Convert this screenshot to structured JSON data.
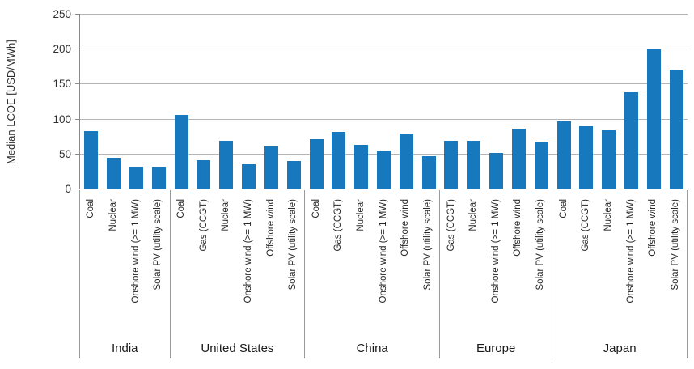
{
  "chart_data": {
    "type": "bar",
    "title": "",
    "xlabel": "",
    "ylabel": "Median LCOE [USD/MWh]",
    "ylim": [
      0,
      250
    ],
    "yticks": [
      0,
      50,
      100,
      150,
      200,
      250
    ],
    "grid": true,
    "legend": false,
    "bar_color": "#1878be",
    "groups": [
      {
        "label": "India",
        "categories": [
          "Coal",
          "Nuclear",
          "Onshore wind (>= 1 MW)",
          "Solar PV (utility scale)"
        ],
        "values": [
          83,
          45,
          32,
          32
        ]
      },
      {
        "label": "United States",
        "categories": [
          "Coal",
          "Gas (CCGT)",
          "Nuclear",
          "Onshore wind (>= 1 MW)",
          "Offshore wind",
          "Solar PV (utility scale)"
        ],
        "values": [
          107,
          42,
          69,
          36,
          63,
          41
        ]
      },
      {
        "label": "China",
        "categories": [
          "Coal",
          "Gas (CCGT)",
          "Nuclear",
          "Onshore wind (>= 1 MW)",
          "Offshore wind",
          "Solar PV (utility scale)"
        ],
        "values": [
          72,
          82,
          64,
          55,
          80,
          48
        ]
      },
      {
        "label": "Europe",
        "categories": [
          "Gas (CCGT)",
          "Nuclear",
          "Onshore wind (>= 1 MW)",
          "Offshore wind",
          "Solar PV (utility scale)"
        ],
        "values": [
          69,
          69,
          52,
          87,
          68
        ]
      },
      {
        "label": "Japan",
        "categories": [
          "Coal",
          "Gas (CCGT)",
          "Nuclear",
          "Onshore wind (>= 1 MW)",
          "Offshore wind",
          "Solar PV (utility scale)"
        ],
        "values": [
          97,
          90,
          84,
          139,
          200,
          171
        ]
      }
    ]
  },
  "colors": {
    "bar": "#1878be",
    "gridline": "#b5b5b5",
    "axis": "#8a8a8a",
    "separator": "#9a9a9a",
    "text": "#262626"
  }
}
